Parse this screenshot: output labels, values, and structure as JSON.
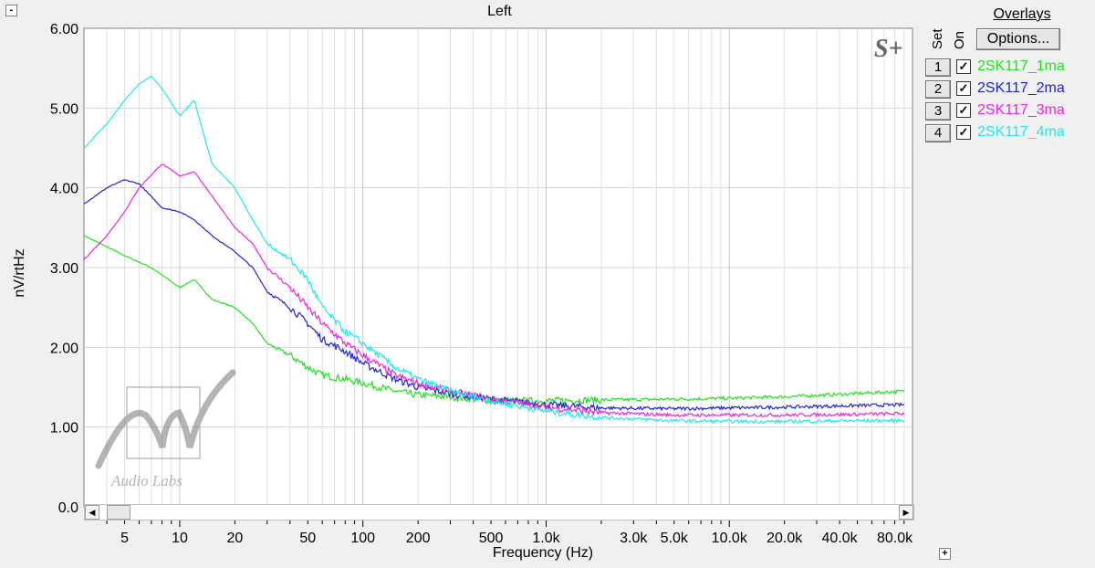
{
  "window": {
    "collapse_label": "-",
    "expand_label": "+",
    "watermark_mark": "S+",
    "logo_text": "Audio Labs"
  },
  "chart_data": {
    "type": "line",
    "title": "Left",
    "xlabel": "Frequency (Hz)",
    "ylabel": "nV/rtHz",
    "x_scale": "log",
    "xlim": [
      3,
      100000
    ],
    "ylim": [
      0,
      6
    ],
    "y_ticks": [
      "0.0",
      "1.00",
      "2.00",
      "3.00",
      "4.00",
      "5.00",
      "6.00"
    ],
    "x_tick_labels": [
      {
        "x": 5,
        "label": "5"
      },
      {
        "x": 10,
        "label": "10"
      },
      {
        "x": 20,
        "label": "20"
      },
      {
        "x": 50,
        "label": "50"
      },
      {
        "x": 100,
        "label": "100"
      },
      {
        "x": 200,
        "label": "200"
      },
      {
        "x": 500,
        "label": "500"
      },
      {
        "x": 1000,
        "label": "1.0k"
      },
      {
        "x": 3000,
        "label": "3.0k"
      },
      {
        "x": 5000,
        "label": "5.0k"
      },
      {
        "x": 10000,
        "label": "10.0k"
      },
      {
        "x": 20000,
        "label": "20.0k"
      },
      {
        "x": 40000,
        "label": "40.0k"
      },
      {
        "x": 80000,
        "label": "80.0k"
      }
    ],
    "grid": true,
    "series": [
      {
        "name": "2SK117_1ma",
        "color": "#22e022",
        "x": [
          3,
          5,
          7,
          10,
          12,
          15,
          20,
          25,
          30,
          40,
          50,
          60,
          80,
          100,
          150,
          200,
          300,
          500,
          1000,
          2000,
          5000,
          10000,
          20000,
          50000,
          90000
        ],
        "y": [
          3.4,
          3.15,
          3.0,
          2.75,
          2.85,
          2.6,
          2.5,
          2.3,
          2.05,
          1.9,
          1.75,
          1.65,
          1.6,
          1.55,
          1.45,
          1.4,
          1.38,
          1.33,
          1.33,
          1.34,
          1.35,
          1.36,
          1.38,
          1.42,
          1.45
        ]
      },
      {
        "name": "2SK117_2ma",
        "color": "#2222cc",
        "x": [
          3,
          4,
          5,
          6,
          8,
          10,
          12,
          15,
          20,
          25,
          30,
          40,
          50,
          60,
          80,
          100,
          150,
          200,
          300,
          500,
          1000,
          2000,
          5000,
          10000,
          20000,
          50000,
          90000
        ],
        "y": [
          3.8,
          4.0,
          4.1,
          4.05,
          3.75,
          3.7,
          3.6,
          3.4,
          3.2,
          3.0,
          2.7,
          2.5,
          2.3,
          2.1,
          1.95,
          1.8,
          1.6,
          1.5,
          1.42,
          1.35,
          1.28,
          1.24,
          1.23,
          1.24,
          1.25,
          1.27,
          1.28
        ]
      },
      {
        "name": "2SK117_3ma",
        "color": "#ee22dd",
        "x": [
          3,
          4,
          5,
          6,
          8,
          10,
          12,
          15,
          20,
          25,
          30,
          40,
          50,
          60,
          80,
          100,
          150,
          200,
          300,
          500,
          1000,
          2000,
          5000,
          10000,
          20000,
          50000,
          90000
        ],
        "y": [
          3.1,
          3.4,
          3.7,
          4.0,
          4.3,
          4.15,
          4.2,
          3.9,
          3.5,
          3.3,
          3.0,
          2.75,
          2.5,
          2.3,
          2.05,
          1.9,
          1.65,
          1.55,
          1.45,
          1.35,
          1.25,
          1.18,
          1.15,
          1.15,
          1.15,
          1.16,
          1.17
        ]
      },
      {
        "name": "2SK117_4ma",
        "color": "#22e8e8",
        "x": [
          3,
          4,
          5,
          6,
          7,
          8,
          10,
          12,
          15,
          20,
          25,
          30,
          40,
          50,
          60,
          80,
          100,
          150,
          200,
          300,
          500,
          1000,
          2000,
          5000,
          10000,
          20000,
          50000,
          90000
        ],
        "y": [
          4.5,
          4.8,
          5.1,
          5.3,
          5.4,
          5.25,
          4.9,
          5.1,
          4.3,
          4.0,
          3.6,
          3.3,
          3.1,
          2.85,
          2.5,
          2.2,
          2.05,
          1.75,
          1.6,
          1.45,
          1.33,
          1.2,
          1.12,
          1.08,
          1.07,
          1.07,
          1.08,
          1.08
        ]
      }
    ]
  },
  "overlays": {
    "title": "Overlays",
    "set_header": "Set",
    "on_header": "On",
    "options_label": "Options...",
    "items": [
      {
        "num": "1",
        "name": "2SK117_1ma",
        "color": "#22e022",
        "checked": "✓"
      },
      {
        "num": "2",
        "name": "2SK117_2ma",
        "color": "#2222cc",
        "checked": "✓"
      },
      {
        "num": "3",
        "name": "2SK117_3ma",
        "color": "#ee22dd",
        "checked": "✓"
      },
      {
        "num": "4",
        "name": "2SK117_4ma",
        "color": "#22e8e8",
        "checked": "✓"
      }
    ]
  },
  "scrollbar": {
    "left_arrow": "◀",
    "right_arrow": "▶"
  }
}
